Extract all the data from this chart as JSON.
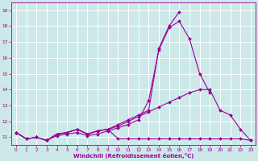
{
  "xlabel": "Windchill (Refroidissement éolien,°C)",
  "bg_color": "#cce8e8",
  "grid_color": "#ffffff",
  "line_color": "#990099",
  "xlim": [
    -0.5,
    23.5
  ],
  "ylim": [
    10.5,
    19.5
  ],
  "yticks": [
    11,
    12,
    13,
    14,
    15,
    16,
    17,
    18,
    19
  ],
  "xticks": [
    0,
    1,
    2,
    3,
    4,
    5,
    6,
    7,
    8,
    9,
    10,
    11,
    12,
    13,
    14,
    15,
    16,
    17,
    18,
    19,
    20,
    21,
    22,
    23
  ],
  "lines": [
    {
      "x": [
        0,
        1,
        2,
        3,
        4,
        5,
        6,
        7,
        8,
        9,
        10,
        11,
        12,
        13,
        14,
        15,
        16,
        17,
        18,
        19
      ],
      "y": [
        11.3,
        10.9,
        11.0,
        10.8,
        11.1,
        11.2,
        11.3,
        11.1,
        11.2,
        11.4,
        11.6,
        11.8,
        12.1,
        13.3,
        16.5,
        17.9,
        18.3,
        17.2,
        15.0,
        13.8
      ]
    },
    {
      "x": [
        0,
        1,
        2,
        3,
        4,
        5,
        6,
        7,
        8,
        9,
        10,
        11,
        12,
        13,
        14,
        15,
        16
      ],
      "y": [
        11.3,
        10.9,
        11.0,
        10.8,
        11.2,
        11.3,
        11.5,
        11.2,
        11.4,
        11.5,
        11.8,
        12.1,
        12.4,
        12.7,
        16.6,
        18.0,
        18.9
      ]
    },
    {
      "x": [
        0,
        1,
        2,
        3,
        4,
        5,
        6,
        7,
        8,
        9,
        10,
        11,
        12,
        13,
        14,
        15,
        16,
        17,
        18,
        19,
        20,
        21,
        22,
        23
      ],
      "y": [
        11.3,
        10.9,
        11.0,
        10.8,
        11.2,
        11.3,
        11.5,
        11.2,
        11.4,
        11.5,
        11.7,
        12.0,
        12.3,
        12.6,
        12.9,
        13.2,
        13.5,
        13.8,
        14.0,
        14.0,
        12.7,
        12.4,
        11.5,
        10.8
      ]
    },
    {
      "x": [
        0,
        1,
        2,
        3,
        4,
        5,
        6,
        7,
        8,
        9,
        10,
        11,
        12,
        13,
        14,
        15,
        16,
        17,
        18,
        19,
        20,
        21,
        22,
        23
      ],
      "y": [
        11.3,
        10.9,
        11.0,
        10.8,
        11.2,
        11.3,
        11.5,
        11.2,
        11.4,
        11.5,
        10.9,
        10.9,
        10.9,
        10.9,
        10.9,
        10.9,
        10.9,
        10.9,
        10.9,
        10.9,
        10.9,
        10.9,
        10.9,
        10.8
      ]
    }
  ]
}
